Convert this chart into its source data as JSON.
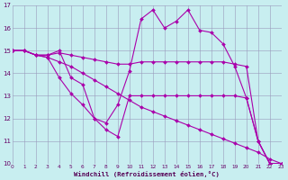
{
  "background_color": "#c8eef0",
  "line_color": "#aa00aa",
  "grid_color": "#9999bb",
  "xlabel": "Windchill (Refroidissement éolien,°C)",
  "xlim": [
    0,
    23
  ],
  "ylim": [
    10,
    17
  ],
  "xticks": [
    0,
    1,
    2,
    3,
    4,
    5,
    6,
    7,
    8,
    9,
    10,
    11,
    12,
    13,
    14,
    15,
    16,
    17,
    18,
    19,
    20,
    21,
    22,
    23
  ],
  "yticks": [
    10,
    11,
    12,
    13,
    14,
    15,
    16,
    17
  ],
  "series": [
    {
      "x": [
        0,
        1,
        2,
        3,
        4,
        5,
        6,
        7,
        8,
        9,
        10,
        11,
        12,
        13,
        14,
        15,
        16,
        17,
        18,
        19,
        20,
        21,
        22,
        23
      ],
      "y": [
        15,
        15,
        14.8,
        14.8,
        15,
        13.8,
        13.5,
        12.0,
        11.8,
        12.6,
        14.1,
        16.4,
        16.8,
        16.0,
        16.3,
        16.8,
        15.9,
        15.8,
        15.3,
        14.3,
        12.9,
        11.0,
        10.0,
        10.0
      ]
    },
    {
      "x": [
        0,
        1,
        2,
        3,
        4,
        5,
        6,
        7,
        8,
        9,
        10,
        11,
        12,
        13,
        14,
        15,
        16,
        17,
        18,
        19,
        20,
        21,
        22,
        23
      ],
      "y": [
        15,
        15,
        14.8,
        14.8,
        14.9,
        14.8,
        14.7,
        14.6,
        14.5,
        14.4,
        14.4,
        14.5,
        14.5,
        14.5,
        14.5,
        14.5,
        14.5,
        14.5,
        14.5,
        14.4,
        14.3,
        11.0,
        10.0,
        10.0
      ]
    },
    {
      "x": [
        0,
        1,
        2,
        3,
        4,
        5,
        6,
        7,
        8,
        9,
        10,
        11,
        12,
        13,
        14,
        15,
        16,
        17,
        18,
        19,
        20,
        21,
        22,
        23
      ],
      "y": [
        15,
        15,
        14.8,
        14.7,
        14.5,
        14.3,
        14.0,
        13.7,
        13.4,
        13.1,
        12.8,
        12.5,
        12.3,
        12.1,
        11.9,
        11.7,
        11.5,
        11.3,
        11.1,
        10.9,
        10.7,
        10.5,
        10.2,
        10.0
      ]
    },
    {
      "x": [
        0,
        1,
        2,
        3,
        4,
        5,
        6,
        7,
        8,
        9,
        10,
        11,
        12,
        13,
        14,
        15,
        16,
        17,
        18,
        19,
        20,
        21,
        22,
        23
      ],
      "y": [
        15,
        15,
        14.8,
        14.7,
        13.8,
        13.1,
        12.6,
        12.0,
        11.5,
        11.2,
        13.0,
        13.0,
        13.0,
        13.0,
        13.0,
        13.0,
        13.0,
        13.0,
        13.0,
        13.0,
        12.9,
        11.0,
        10.0,
        10.0
      ]
    }
  ]
}
